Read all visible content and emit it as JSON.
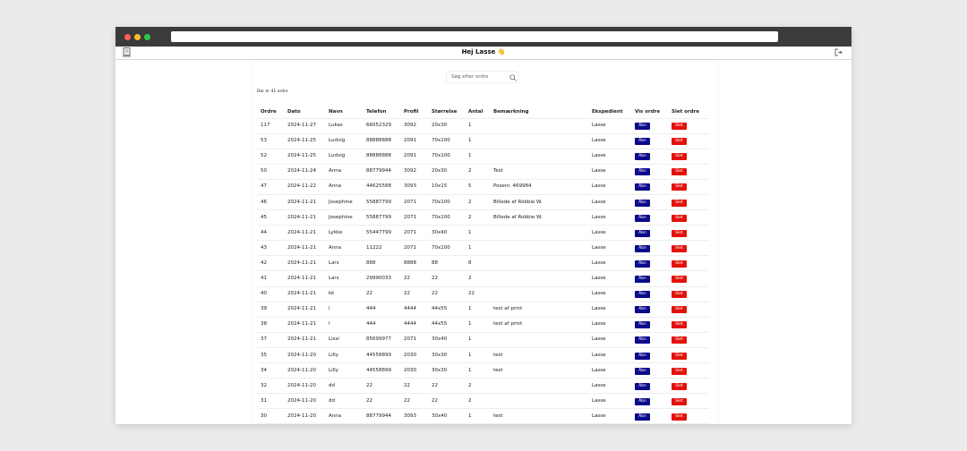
{
  "header": {
    "title": "Hej Lasse 👋"
  },
  "search": {
    "placeholder": "Søg efter ordre"
  },
  "count_text": "Der er 41 ordre",
  "buttons": {
    "open": "Åbn",
    "delete": "Slet"
  },
  "table": {
    "columns": [
      "Ordre",
      "Dato",
      "Navn",
      "Telefon",
      "Profil",
      "Størrelse",
      "Antal",
      "Bemærkning",
      "Ekspedient",
      "Vis ordre",
      "Slet ordre"
    ],
    "rows": [
      [
        "117",
        "2024-11-27",
        "Lukas",
        "66052329",
        "3092",
        "20x30",
        "1",
        "",
        "Lasse"
      ],
      [
        "53",
        "2024-11-25",
        "Ludvig",
        "88888888",
        "2091",
        "70x100",
        "1",
        "",
        "Lasse"
      ],
      [
        "52",
        "2024-11-25",
        "Ludvig",
        "88888888",
        "2091",
        "70x100",
        "1",
        "",
        "Lasse"
      ],
      [
        "50",
        "2024-11-24",
        "Anna",
        "88779944",
        "3092",
        "20x30",
        "2",
        "Test",
        "Lasse"
      ],
      [
        "47",
        "2024-11-22",
        "Anna",
        "44625588",
        "3093",
        "10x15",
        "5",
        "Posenr. 469984",
        "Lasse"
      ],
      [
        "46",
        "2024-11-21",
        "Josephine",
        "55887799",
        "2071",
        "70x100",
        "2",
        "Billede af Robbie W.",
        "Lasse"
      ],
      [
        "45",
        "2024-11-21",
        "Josephine",
        "55887799",
        "2071",
        "70x100",
        "2",
        "Billede af Robbie W.",
        "Lasse"
      ],
      [
        "44",
        "2024-11-21",
        "Lykke",
        "55447799",
        "2071",
        "30x40",
        "1",
        "",
        "Lasse"
      ],
      [
        "43",
        "2024-11-21",
        "Anna",
        "11222",
        "2071",
        "70x100",
        "1",
        "",
        "Lasse"
      ],
      [
        "42",
        "2024-11-21",
        "Lars",
        "888",
        "8888",
        "88",
        "8",
        "",
        "Lasse"
      ],
      [
        "41",
        "2024-11-21",
        "Lars",
        "29990033",
        "22",
        "22",
        "2",
        "",
        "Lasse"
      ],
      [
        "40",
        "2024-11-21",
        "kk",
        "22",
        "22",
        "22",
        "22",
        "",
        "Lasse"
      ],
      [
        "39",
        "2024-11-21",
        "l",
        "444",
        "4444",
        "44x55",
        "1",
        "test af print",
        "Lasse"
      ],
      [
        "38",
        "2024-11-21",
        "l",
        "444",
        "4444",
        "44x55",
        "1",
        "test af print",
        "Lasse"
      ],
      [
        "37",
        "2024-11-21",
        "Lissi",
        "85699977",
        "2071",
        "30x40",
        "1",
        "",
        "Lasse"
      ],
      [
        "35",
        "2024-11-20",
        "Lilly",
        "44558899",
        "2030",
        "30x30",
        "1",
        "test",
        "Lasse"
      ],
      [
        "34",
        "2024-11-20",
        "Lilly",
        "44558899",
        "2030",
        "30x30",
        "1",
        "test",
        "Lasse"
      ],
      [
        "32",
        "2024-11-20",
        "dd",
        "22",
        "22",
        "22",
        "2",
        "",
        "Lasse"
      ],
      [
        "31",
        "2024-11-20",
        "dd",
        "22",
        "22",
        "22",
        "2",
        "",
        "Lasse"
      ],
      [
        "30",
        "2024-11-20",
        "Anna",
        "88779944",
        "3093",
        "30x40",
        "1",
        "test",
        "Lasse"
      ]
    ]
  }
}
